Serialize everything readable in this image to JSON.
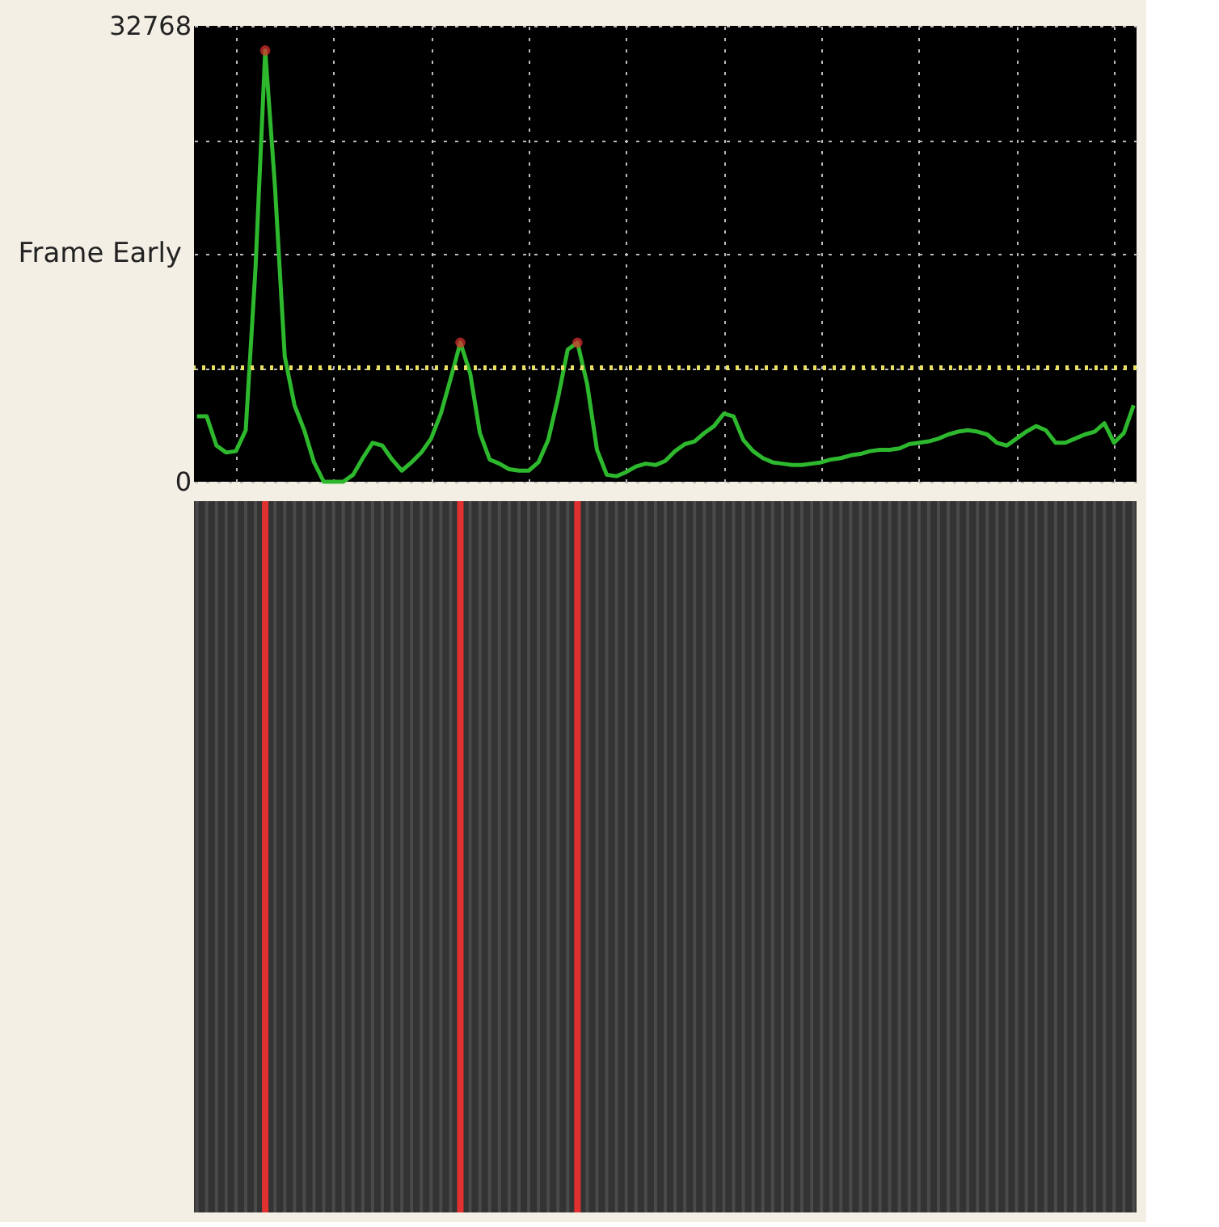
{
  "chart_data": {
    "type": "line",
    "ylabel": "Frame Early",
    "categories": [
      null,
      null,
      null,
      null,
      null,
      null,
      null,
      null,
      null,
      null,
      null,
      null,
      null,
      null,
      null,
      null,
      null,
      null,
      null,
      null,
      null,
      null,
      null,
      null,
      null,
      null,
      null,
      null,
      null,
      null,
      null,
      null,
      null,
      null,
      null,
      null,
      null,
      null,
      null,
      null,
      null,
      null,
      null,
      null,
      null,
      null,
      null,
      null,
      null,
      null,
      null,
      null,
      null,
      null,
      null,
      null,
      null,
      null,
      null,
      null,
      null,
      null,
      null,
      null,
      null,
      null,
      null,
      null,
      null,
      null,
      null,
      null,
      null,
      null,
      null,
      null,
      null,
      null,
      null,
      null,
      null,
      null,
      null,
      null,
      null,
      null,
      null,
      null,
      null,
      null,
      null,
      null,
      null,
      null,
      null,
      null,
      null
    ],
    "series": [
      {
        "type": "line",
        "color": "#2db82d",
        "marker": "none",
        "values": [
          4700,
          4700,
          2600,
          2100,
          2200,
          3700,
          15300,
          31000,
          21200,
          9000,
          5500,
          3700,
          1400,
          0,
          0,
          0,
          500,
          1700,
          2800,
          2600,
          1600,
          800,
          1400,
          2100,
          3100,
          4900,
          7400,
          10000,
          7800,
          3500,
          1600,
          1300,
          900,
          800,
          800,
          1400,
          3000,
          6000,
          9500,
          10000,
          7000,
          2300,
          500,
          400,
          700,
          1100,
          1300,
          1200,
          1500,
          2200,
          2700,
          2900,
          3500,
          4000,
          4900,
          4700,
          3000,
          2200,
          1700,
          1400,
          1300,
          1200,
          1200,
          1300,
          1400,
          1600,
          1700,
          1900,
          2000,
          2200,
          2300,
          2300,
          2400,
          2700,
          2800,
          2900,
          3100,
          3400,
          3600,
          3700,
          3600,
          3400,
          2800,
          2600,
          3100,
          3600,
          4000,
          3700,
          2800,
          2800,
          3100,
          3400,
          3600,
          4200,
          2800,
          3500,
          5500
        ]
      },
      {
        "type": "scatter",
        "color": "#e03030",
        "marker": "circle",
        "values": [
          null,
          null,
          null,
          null,
          null,
          null,
          null,
          31000,
          null,
          null,
          null,
          null,
          null,
          null,
          null,
          null,
          null,
          null,
          null,
          null,
          null,
          null,
          null,
          null,
          null,
          null,
          null,
          10000,
          null,
          null,
          null,
          null,
          null,
          null,
          null,
          null,
          null,
          null,
          null,
          10000,
          null,
          null,
          null,
          null,
          null,
          null,
          null,
          null,
          null,
          null,
          null,
          null,
          null,
          null,
          null,
          null,
          null,
          null,
          null,
          null,
          null,
          null,
          null,
          null,
          null,
          null,
          null,
          null,
          null,
          null,
          null,
          null,
          null,
          null,
          null,
          null,
          null,
          null,
          null,
          null,
          null,
          null,
          null,
          null,
          null,
          null,
          null,
          null,
          null,
          null,
          null,
          null,
          null,
          null,
          null,
          null,
          null
        ]
      }
    ],
    "ylim": [
      0,
      32768
    ],
    "yticks": [
      0,
      {
        "value": 8192,
        "label": null
      },
      {
        "value": 16384,
        "label": null
      },
      {
        "value": 24576,
        "label": null
      },
      32768
    ],
    "ref_lines": [
      {
        "axis": "y",
        "value": 8192,
        "color": "#e8e060",
        "line_style": "dotted"
      }
    ],
    "grid": true,
    "tick_labels": "y"
  }
}
